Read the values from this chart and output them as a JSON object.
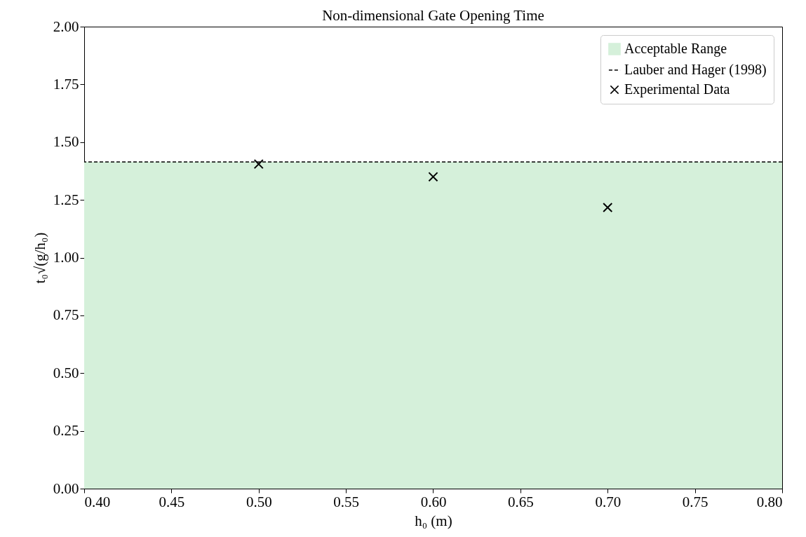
{
  "chart_data": {
    "type": "scatter",
    "title": "Non-dimensional Gate Opening Time",
    "xlabel": "h₀ (m)",
    "ylabel": "t₀√(g/h₀)",
    "x": [
      0.5,
      0.6,
      0.7
    ],
    "series": [
      {
        "name": "Experimental Data",
        "color": "#000000",
        "values": [
          1.405,
          1.35,
          1.217
        ]
      }
    ],
    "marker": "cross",
    "xlim": [
      0.4,
      0.8
    ],
    "xticks": [
      {
        "value": 0.4,
        "label": "0.40"
      },
      {
        "value": 0.45,
        "label": "0.45"
      },
      {
        "value": 0.5,
        "label": "0.50"
      },
      {
        "value": 0.55,
        "label": "0.55"
      },
      {
        "value": 0.6,
        "label": "0.60"
      },
      {
        "value": 0.65,
        "label": "0.65"
      },
      {
        "value": 0.7,
        "label": "0.70"
      },
      {
        "value": 0.75,
        "label": "0.75"
      },
      {
        "value": 0.8,
        "label": "0.80"
      }
    ],
    "ylim": [
      0,
      2
    ],
    "yticks": [
      {
        "value": 0,
        "label": "0.00"
      },
      {
        "value": 0.25,
        "label": "0.25"
      },
      {
        "value": 0.5,
        "label": "0.50"
      },
      {
        "value": 0.75,
        "label": "0.75"
      },
      {
        "value": 1,
        "label": "1.00"
      },
      {
        "value": 1.25,
        "label": "1.25"
      },
      {
        "value": 1.5,
        "label": "1.50"
      },
      {
        "value": 1.75,
        "label": "1.75"
      },
      {
        "value": 2,
        "label": "2.00"
      }
    ],
    "bands": [
      {
        "axis": "y",
        "from": 0,
        "to": 1.414,
        "label": "Acceptable Range",
        "color": "#d5f0da"
      }
    ],
    "ref_lines": [
      {
        "axis": "y",
        "value": 1.414,
        "label": "Lauber and Hager (1998)",
        "color": "#000000",
        "line_style": "dashed"
      }
    ],
    "legend": "top right"
  }
}
